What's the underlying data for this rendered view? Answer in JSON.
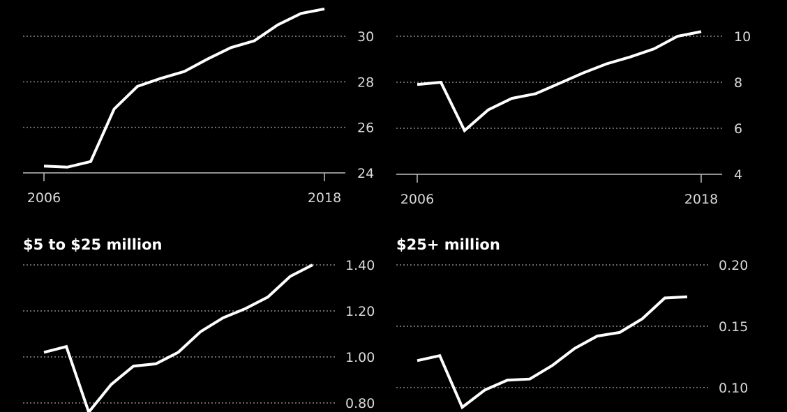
{
  "chart_data": [
    {
      "type": "line",
      "title": "",
      "x": [
        2006,
        2007,
        2008,
        2009,
        2010,
        2011,
        2012,
        2013,
        2014,
        2015,
        2016,
        2017,
        2018
      ],
      "values": [
        24.3,
        24.25,
        24.5,
        26.8,
        27.8,
        28.15,
        28.45,
        29.0,
        29.5,
        29.8,
        30.5,
        31.0,
        31.2
      ],
      "yticks": [
        24,
        26,
        28,
        30
      ],
      "ytick_labels": [
        "24",
        "26",
        "28",
        "30"
      ],
      "xtick_labels": [
        "2006",
        "2018"
      ],
      "ylim": [
        24,
        31.2
      ],
      "grid": true,
      "line_color": "#ffffff"
    },
    {
      "type": "line",
      "title": "",
      "x": [
        2006,
        2007,
        2008,
        2009,
        2010,
        2011,
        2012,
        2013,
        2014,
        2015,
        2016,
        2017,
        2018
      ],
      "values": [
        7.9,
        8.0,
        5.9,
        6.8,
        7.3,
        7.5,
        7.95,
        8.4,
        8.8,
        9.1,
        9.45,
        10.0,
        10.2
      ],
      "yticks": [
        4,
        6,
        8,
        10
      ],
      "ytick_labels": [
        "4",
        "6",
        "8",
        "10"
      ],
      "xtick_labels": [
        "2006",
        "2018"
      ],
      "ylim": [
        4,
        10.2
      ],
      "grid": true,
      "line_color": "#ffffff"
    },
    {
      "type": "line",
      "title": "$5 to $25 million",
      "x": [
        2006,
        2007,
        2008,
        2009,
        2010,
        2011,
        2012,
        2013,
        2014,
        2015,
        2016,
        2017,
        2018
      ],
      "values": [
        1.02,
        1.045,
        0.76,
        0.88,
        0.96,
        0.97,
        1.02,
        1.11,
        1.17,
        1.21,
        1.26,
        1.35,
        1.4
      ],
      "yticks": [
        0.8,
        1.0,
        1.2,
        1.4
      ],
      "ytick_labels": [
        "0.80",
        "1.00",
        "1.20",
        "1.40"
      ],
      "ylim": [
        0.8,
        1.4
      ],
      "grid": true,
      "line_color": "#ffffff"
    },
    {
      "type": "line",
      "title": "$25+ million",
      "x": [
        2006,
        2007,
        2008,
        2009,
        2010,
        2011,
        2012,
        2013,
        2014,
        2015,
        2016,
        2017,
        2018
      ],
      "values": [
        0.122,
        0.126,
        0.084,
        0.098,
        0.106,
        0.107,
        0.118,
        0.132,
        0.142,
        0.145,
        0.156,
        0.173,
        0.174
      ],
      "yticks": [
        0.1,
        0.15,
        0.2
      ],
      "ytick_labels": [
        "0.10",
        "0.15",
        "0.20"
      ],
      "ylim": [
        0.1,
        0.2
      ],
      "grid": true,
      "line_color": "#ffffff"
    }
  ]
}
